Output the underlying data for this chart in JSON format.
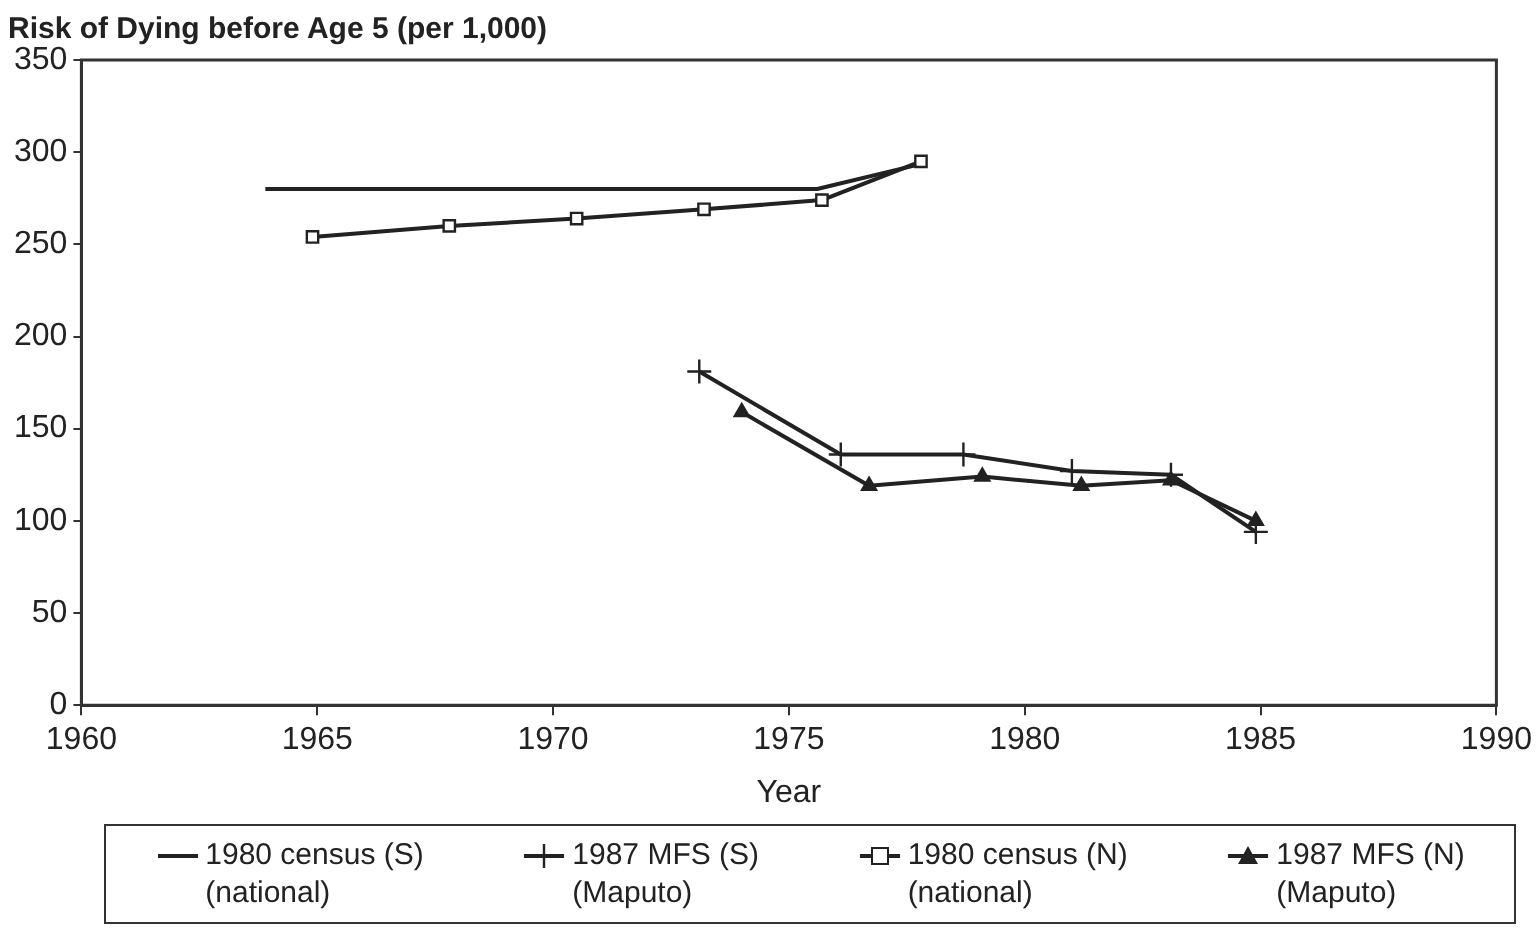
{
  "chart_data": {
    "type": "line",
    "ylabel": "Risk of Dying before Age 5 (per 1,000)",
    "xlabel": "Year",
    "xlim": [
      1960,
      1990
    ],
    "xticks": [
      1960,
      1965,
      1970,
      1975,
      1980,
      1985,
      1990
    ],
    "ylim": [
      0,
      350
    ],
    "yticks": [
      0,
      50,
      100,
      150,
      200,
      250,
      300,
      350
    ],
    "grid": false,
    "legend": "bottom",
    "line_style": "solid",
    "series": [
      {
        "name": "1980 census (S)\n(national)",
        "color": "#222222",
        "marker": "none",
        "x": [
          1963.9,
          1975.6,
          1977.7
        ],
        "values": [
          280,
          280,
          293
        ]
      },
      {
        "name": "1987 MFS (S)\n(Maputo)",
        "color": "#222222",
        "marker": "cross",
        "x": [
          1973.1,
          1976.1,
          1978.7,
          1981.0,
          1983.1,
          1984.9
        ],
        "values": [
          181,
          136,
          136,
          127,
          125,
          94
        ]
      },
      {
        "name": "1980 census (N)\n(national)",
        "color": "#222222",
        "marker": "square",
        "x": [
          1964.9,
          1967.8,
          1970.5,
          1973.2,
          1975.7,
          1977.8
        ],
        "values": [
          254,
          260,
          264,
          269,
          274,
          295
        ]
      },
      {
        "name": "1987 MFS (N)\n(Maputo)",
        "color": "#222222",
        "marker": "triangle",
        "x": [
          1974.0,
          1976.7,
          1979.1,
          1981.2,
          1983.1,
          1984.9
        ],
        "values": [
          159,
          119,
          124,
          119,
          122,
          100
        ]
      }
    ]
  }
}
